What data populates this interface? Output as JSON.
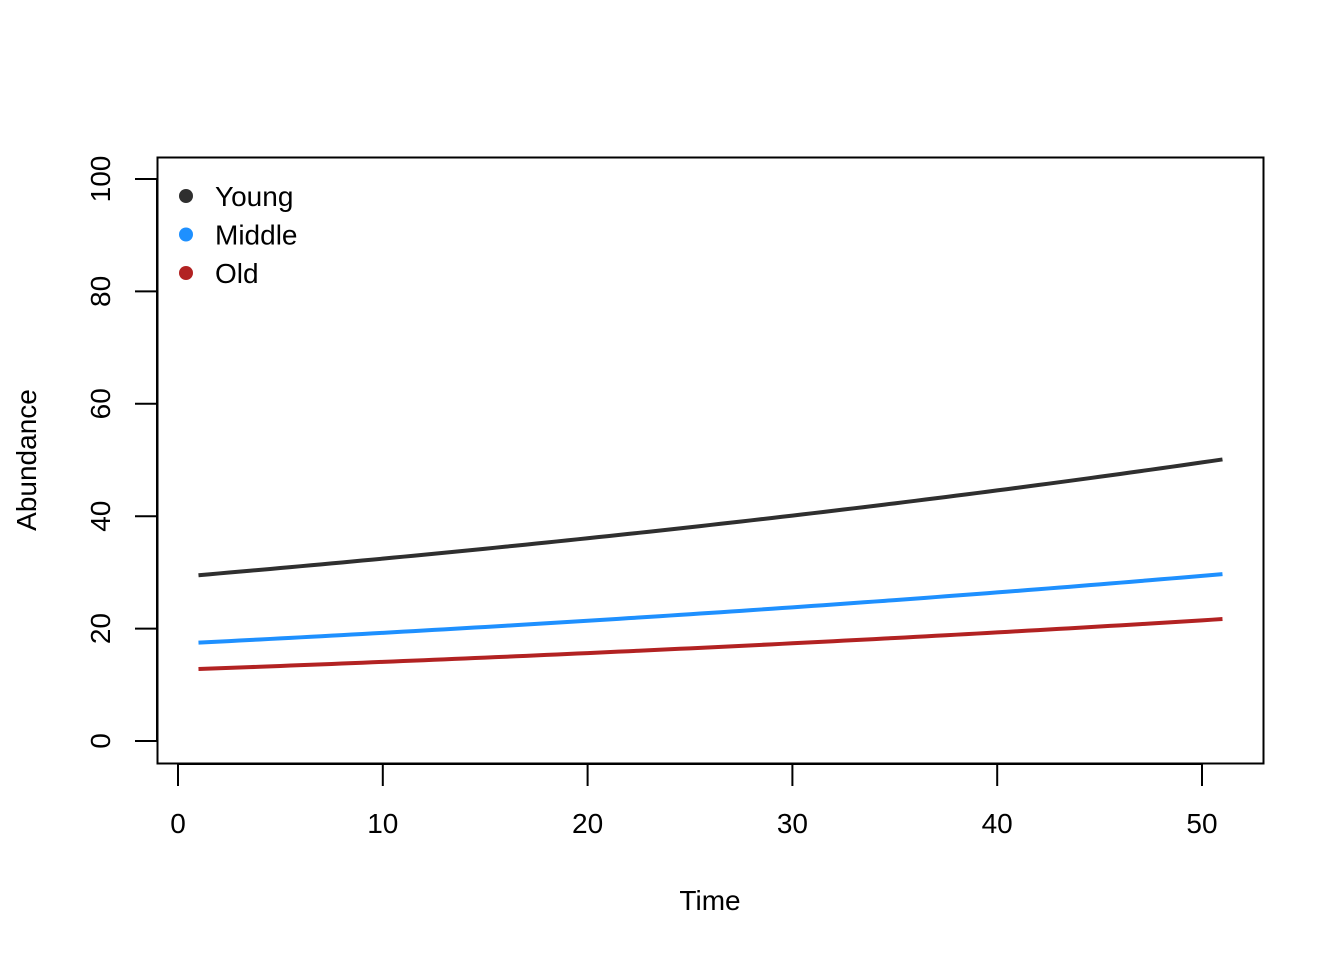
{
  "chart_data": {
    "type": "line",
    "title": "",
    "xlabel": "Time",
    "ylabel": "Abundance",
    "xlim": [
      1,
      51
    ],
    "ylim": [
      0,
      100
    ],
    "x_ticks": [
      "0",
      "10",
      "20",
      "30",
      "40",
      "50"
    ],
    "y_ticks": [
      "0",
      "20",
      "40",
      "60",
      "80",
      "100"
    ],
    "grid": false,
    "legend_position": "top-left",
    "series": [
      {
        "name": "Young",
        "color": "#2f2f2f",
        "start": {
          "x": 1,
          "y": 29.5
        },
        "end": {
          "x": 51,
          "y": 50.1
        }
      },
      {
        "name": "Middle",
        "color": "#1e90ff",
        "start": {
          "x": 1,
          "y": 17.5
        },
        "end": {
          "x": 51,
          "y": 29.7
        }
      },
      {
        "name": "Old",
        "color": "#b22222",
        "start": {
          "x": 1,
          "y": 12.8
        },
        "end": {
          "x": 51,
          "y": 21.7
        }
      }
    ]
  }
}
